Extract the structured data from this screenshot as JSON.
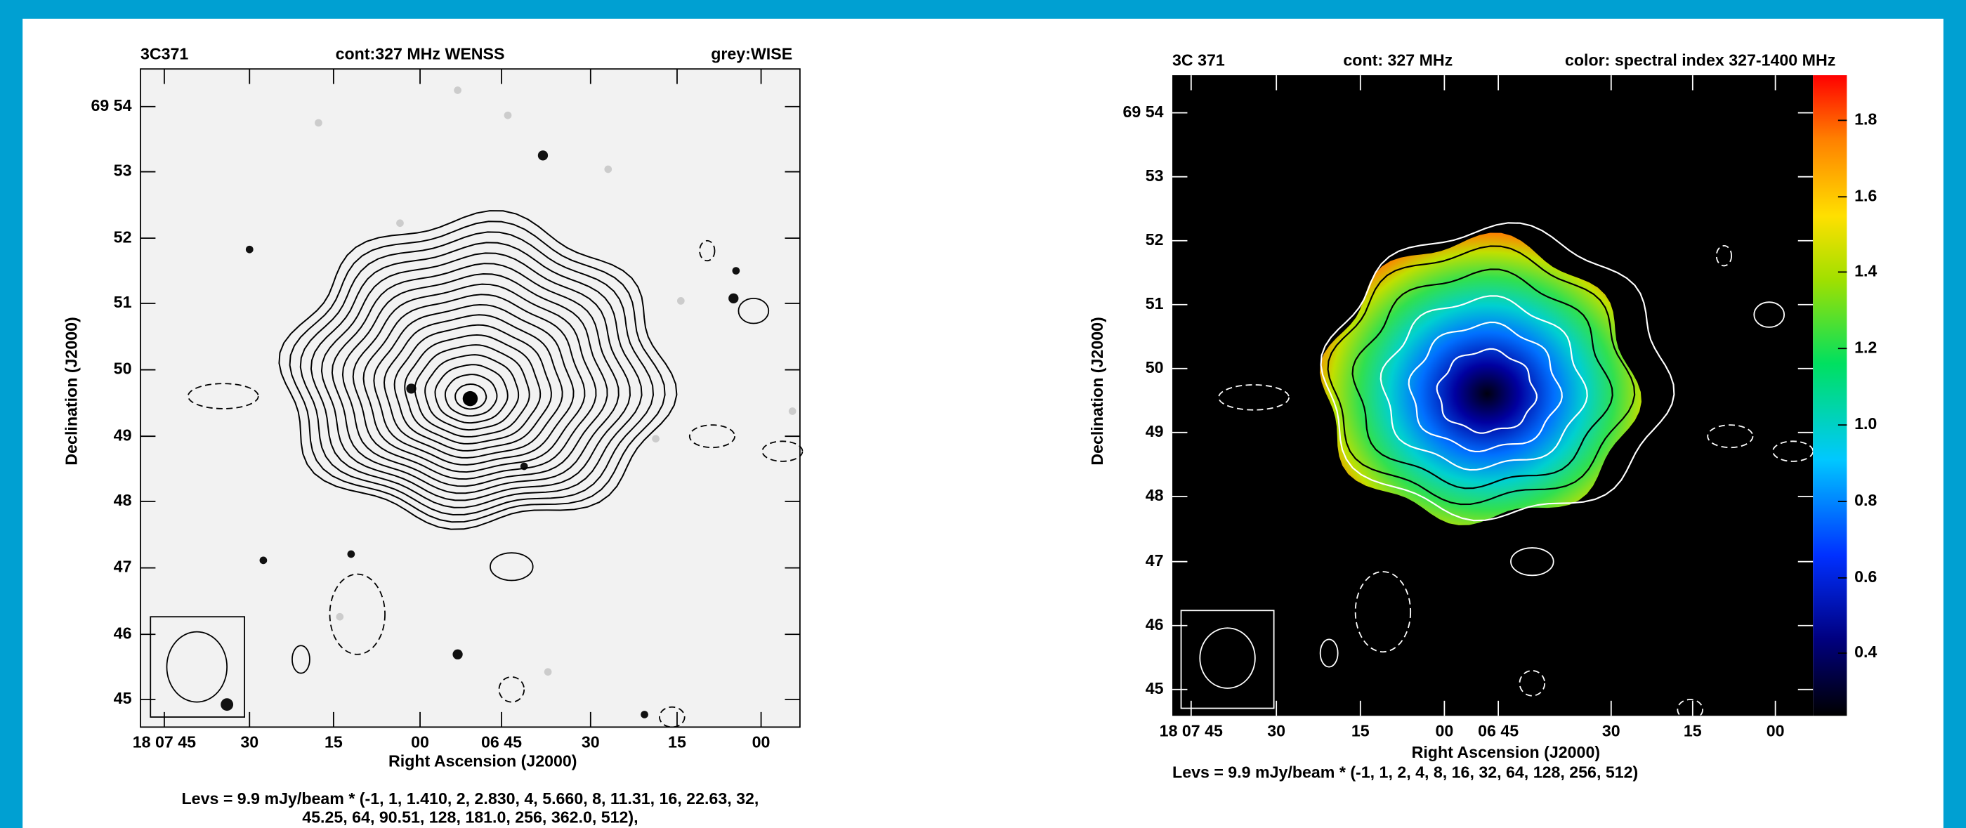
{
  "left_panel": {
    "header": {
      "source": "3C371",
      "contours": "cont:327 MHz WENSS",
      "greyscale": "grey:WISE"
    },
    "dec_ticks": [
      "69 54",
      "53",
      "52",
      "51",
      "50",
      "49",
      "48",
      "47",
      "46",
      "45"
    ],
    "ra_ticks": [
      "18 07 45",
      "30",
      "15",
      "00",
      "06 45",
      "30",
      "15",
      "00"
    ],
    "x_label": "Right Ascension (J2000)",
    "y_label": "Declination (J2000)",
    "levels": [
      "Levs = 9.9 mJy/beam * (-1, 1, 1.410, 2, 2.830, 4, 5.660, 8, 11.31, 16, 22.63, 32,",
      "45.25, 64, 90.51, 128, 181.0, 256, 362.0, 512),"
    ]
  },
  "right_panel": {
    "header": {
      "source": "3C 371",
      "contours": "cont: 327 MHz",
      "color": "color: spectral index 327-1400 MHz"
    },
    "dec_ticks": [
      "69 54",
      "53",
      "52",
      "51",
      "50",
      "49",
      "48",
      "47",
      "46",
      "45"
    ],
    "ra_ticks": [
      "18 07 45",
      "30",
      "15",
      "00",
      "06 45",
      "30",
      "15",
      "00"
    ],
    "colorbar_ticks": [
      "1.8",
      "1.6",
      "1.4",
      "1.2",
      "1.0",
      "0.8",
      "0.6",
      "0.4"
    ],
    "x_label": "Right Ascension (J2000)",
    "y_label": "Declination (J2000)",
    "levels": [
      "Levs = 9.9 mJy/beam * (-1, 1, 2, 4, 8, 16, 32, 64, 128, 256, 512)"
    ]
  }
}
